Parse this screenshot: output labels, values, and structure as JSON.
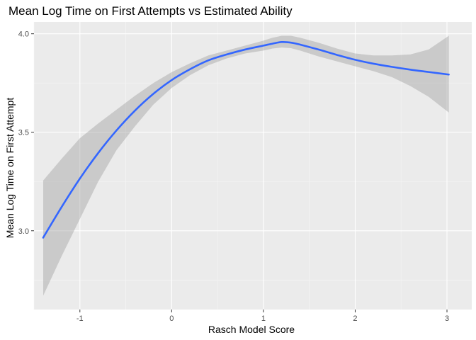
{
  "chart_data": {
    "type": "line",
    "title": "Mean Log Time on First Attempts vs Estimated Ability",
    "xlabel": "Rasch Model Score",
    "ylabel": "Mean Log Time on First Attempt",
    "xlim": [
      -1.5,
      3.27
    ],
    "ylim": [
      2.6,
      4.06
    ],
    "x_ticks": [
      -1,
      0,
      1,
      2,
      3
    ],
    "x_tick_labels": [
      "-1",
      "0",
      "1",
      "2",
      "3"
    ],
    "y_ticks": [
      3.0,
      3.5,
      4.0
    ],
    "y_tick_labels": [
      "3.0",
      "3.5",
      "4.0"
    ],
    "grid": true,
    "series": [
      {
        "x": [
          -1.4,
          -1.2,
          -1.0,
          -0.8,
          -0.6,
          -0.4,
          -0.2,
          0.0,
          0.2,
          0.4,
          0.6,
          0.8,
          1.0,
          1.1,
          1.2,
          1.3,
          1.4,
          1.6,
          1.8,
          2.0,
          2.2,
          2.4,
          2.6,
          2.8,
          3.02
        ],
        "y": [
          2.965,
          3.12,
          3.265,
          3.395,
          3.51,
          3.61,
          3.695,
          3.765,
          3.82,
          3.865,
          3.895,
          3.92,
          3.94,
          3.95,
          3.958,
          3.955,
          3.945,
          3.92,
          3.893,
          3.868,
          3.848,
          3.832,
          3.818,
          3.806,
          3.793
        ],
        "lower": [
          2.67,
          2.87,
          3.06,
          3.25,
          3.41,
          3.53,
          3.64,
          3.725,
          3.79,
          3.84,
          3.875,
          3.9,
          3.915,
          3.925,
          3.93,
          3.927,
          3.915,
          3.885,
          3.86,
          3.835,
          3.81,
          3.78,
          3.735,
          3.68,
          3.6
        ],
        "upper": [
          3.255,
          3.365,
          3.47,
          3.545,
          3.615,
          3.685,
          3.75,
          3.805,
          3.85,
          3.89,
          3.915,
          3.94,
          3.965,
          3.98,
          3.99,
          3.99,
          3.98,
          3.955,
          3.925,
          3.9,
          3.89,
          3.89,
          3.895,
          3.92,
          3.99
        ]
      }
    ],
    "colors": {
      "line": "#3366ff",
      "ribbon": "#999999",
      "panel": "#ebebeb",
      "grid_major": "#ffffff",
      "grid_minor": "#f5f5f5",
      "tick": "#333333"
    }
  }
}
